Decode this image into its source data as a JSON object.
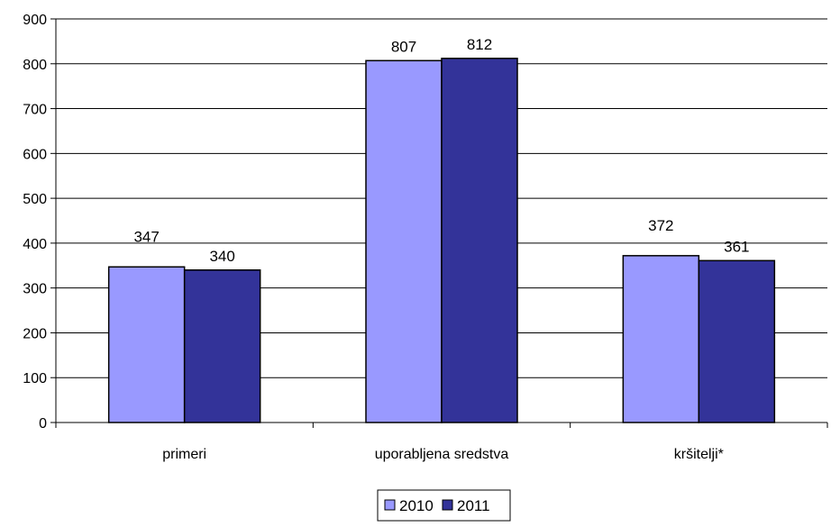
{
  "chart_data": {
    "type": "bar",
    "categories": [
      "primeri",
      "uporabljena sredstva",
      "kršitelji*"
    ],
    "series": [
      {
        "name": "2010",
        "values": [
          347,
          807,
          372
        ],
        "color": "#9999ff"
      },
      {
        "name": "2011",
        "values": [
          340,
          812,
          361
        ],
        "color": "#333399"
      }
    ],
    "ylim": [
      0,
      900
    ],
    "yticks": [
      0,
      100,
      200,
      300,
      400,
      500,
      600,
      700,
      800,
      900
    ],
    "grid": true,
    "legend_position": "bottom"
  }
}
